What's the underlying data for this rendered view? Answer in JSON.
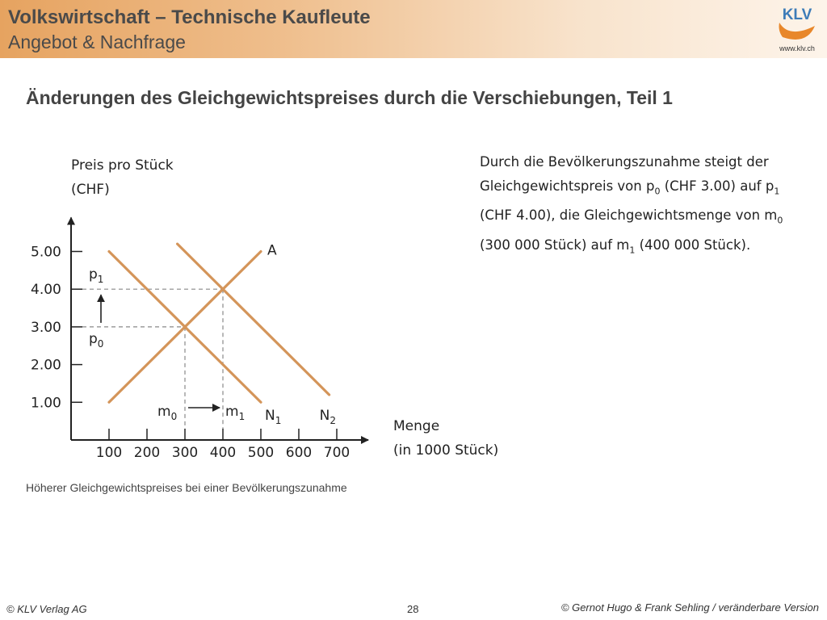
{
  "header": {
    "title": "Volkswirtschaft – Technische Kaufleute",
    "subtitle": "Angebot & Nachfrage",
    "logo_text": "KLV",
    "logo_url": "www.klv.ch"
  },
  "slide_title": "Änderungen des Gleichgewichtspreises durch die Verschiebungen, Teil 1",
  "description": {
    "line1": "Durch die Bevölkerungszunahme steigt der",
    "line2_a": "Gleichgewichtspreis von p",
    "line2_sub1": "0",
    "line2_b": " (CHF 3.00) auf p",
    "line2_sub2": "1",
    "line3_a": "(CHF 4.00), die Gleichgewichtsmenge von m",
    "line3_sub": "0",
    "line4_a": "(300 000 Stück) auf m",
    "line4_sub": "1",
    "line4_b": " (400 000 Stück)."
  },
  "caption": "Höherer Gleichgewichtspreises bei einer Bevölkerungszunahme",
  "footer": {
    "left": "© KLV Verlag AG",
    "page": "28",
    "right": "© Gernot Hugo & Frank Sehling / veränderbare Version"
  },
  "colors": {
    "curve": "#d4955a",
    "axis": "#222222",
    "guide": "#888888",
    "header_start": "#e6a360",
    "logo_orange": "#e8872a",
    "logo_blue": "#3d7cb8"
  },
  "chart_data": {
    "type": "line",
    "ylabel_line1": "Preis pro Stück",
    "ylabel_line2": "(CHF)",
    "xlabel_line1": "Menge",
    "xlabel_line2": "(in 1000 Stück)",
    "x_ticks": [
      100,
      200,
      300,
      400,
      500,
      600,
      700
    ],
    "x_tick_labels": [
      "100",
      "200",
      "300",
      "400",
      "500",
      "600",
      "700"
    ],
    "y_ticks": [
      1,
      2,
      3,
      4,
      5
    ],
    "y_tick_labels": [
      "1.00",
      "2.00",
      "3.00",
      "4.00",
      "5.00"
    ],
    "xlim": [
      0,
      800
    ],
    "ylim": [
      0,
      5.9
    ],
    "series": [
      {
        "name": "A",
        "x": [
          100,
          500
        ],
        "y": [
          1,
          5
        ]
      },
      {
        "name": "N",
        "name_sub": "1",
        "x": [
          100,
          500
        ],
        "y": [
          5,
          1
        ]
      },
      {
        "name": "N",
        "name_sub": "2",
        "x": [
          280,
          680
        ],
        "y": [
          5.2,
          1.2
        ]
      }
    ],
    "annotations": {
      "p0": {
        "label": "p",
        "sub": "0",
        "y": 3
      },
      "p1": {
        "label": "p",
        "sub": "1",
        "y": 4
      },
      "m0": {
        "label": "m",
        "sub": "0",
        "x": 300
      },
      "m1": {
        "label": "m",
        "sub": "1",
        "x": 400
      },
      "eq0": {
        "x": 300,
        "y": 3
      },
      "eq1": {
        "x": 400,
        "y": 4
      }
    }
  }
}
